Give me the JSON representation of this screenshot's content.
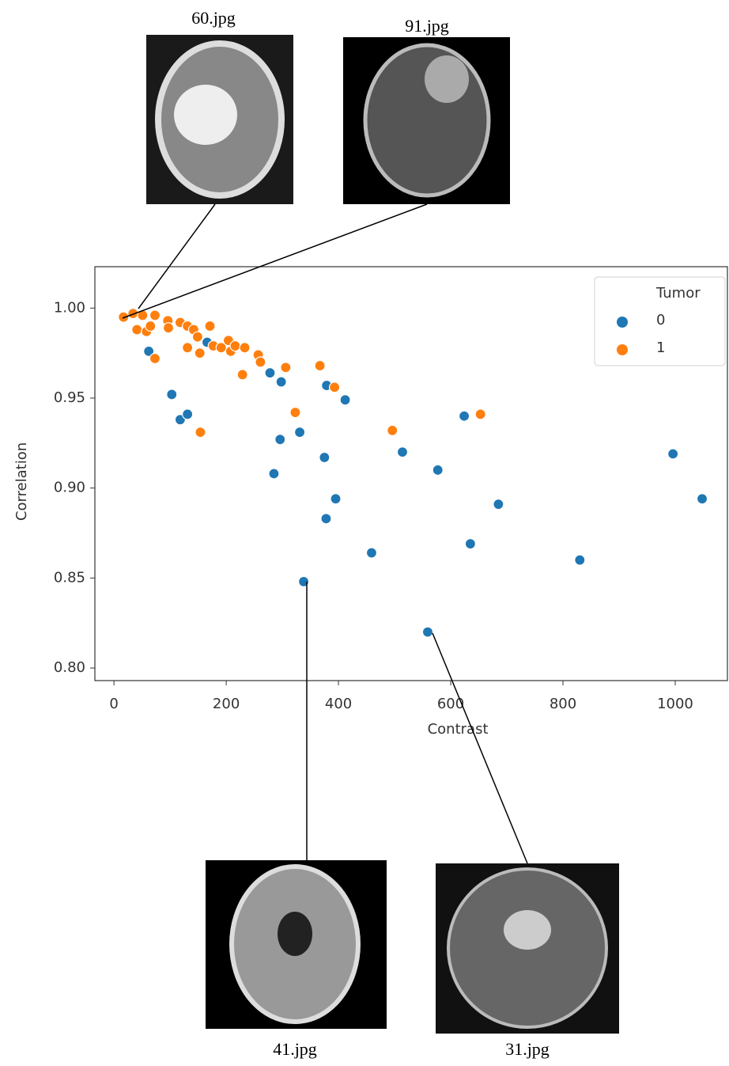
{
  "chart_data": {
    "type": "scatter",
    "x_label": "Contrast",
    "y_label": "Correlation",
    "legend_title": "Tumor",
    "legend": "upper right",
    "xlim": [
      -34,
      1093
    ],
    "ylim": [
      0.793,
      1.023
    ],
    "xticks": [
      0,
      200,
      400,
      600,
      800,
      1000
    ],
    "yticks": [
      {
        "value": 0.8,
        "label": "0.80"
      },
      0.85,
      {
        "value": 0.9,
        "label": "0.90"
      },
      0.95,
      {
        "value": 1.0,
        "label": "1.00"
      }
    ],
    "series": [
      {
        "name": "0",
        "color": "#1f77b4",
        "x": [
          62,
          103,
          118,
          131,
          166,
          278,
          298,
          296,
          285,
          331,
          375,
          379,
          412,
          378,
          395,
          338,
          459,
          514,
          577,
          559,
          624,
          635,
          685,
          830,
          996,
          1048
        ],
        "values": [
          0.976,
          0.952,
          0.938,
          0.941,
          0.981,
          0.964,
          0.959,
          0.927,
          0.908,
          0.931,
          0.917,
          0.957,
          0.949,
          0.883,
          0.894,
          0.848,
          0.864,
          0.92,
          0.91,
          0.82,
          0.94,
          0.869,
          0.891,
          0.86,
          0.919,
          0.894
        ]
      },
      {
        "name": "1",
        "color": "#ff7f0e",
        "x": [
          17,
          34,
          51,
          41,
          58,
          65,
          73,
          73,
          96,
          97,
          118,
          131,
          131,
          142,
          149,
          153,
          154,
          171,
          177,
          191,
          204,
          208,
          216,
          233,
          229,
          257,
          261,
          306,
          323,
          367,
          393,
          496,
          653
        ],
        "values": [
          0.995,
          0.997,
          0.996,
          0.988,
          0.987,
          0.99,
          0.996,
          0.972,
          0.993,
          0.989,
          0.992,
          0.99,
          0.978,
          0.988,
          0.984,
          0.975,
          0.931,
          0.99,
          0.979,
          0.978,
          0.982,
          0.976,
          0.979,
          0.978,
          0.963,
          0.974,
          0.97,
          0.967,
          0.942,
          0.968,
          0.956,
          0.932,
          0.941
        ]
      }
    ],
    "annotations": [
      "60.jpg",
      "91.jpg",
      "41.jpg",
      "31.jpg"
    ]
  }
}
